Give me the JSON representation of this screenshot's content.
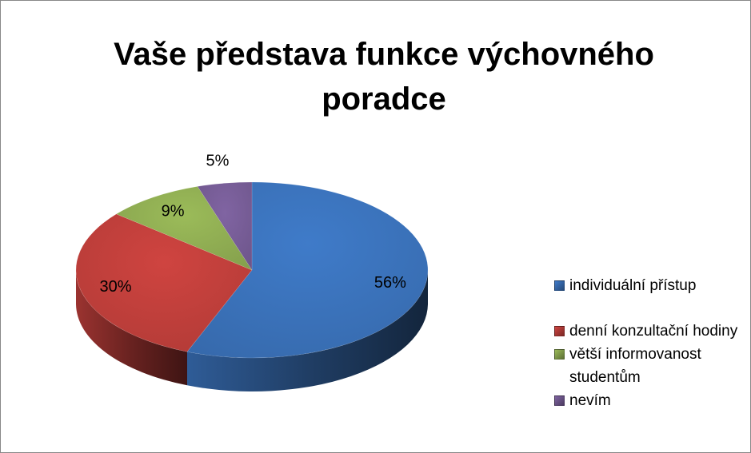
{
  "chart_data": {
    "type": "pie",
    "title": "Vaše představa funkce výchovného poradce",
    "categories": [
      "individuální přístup",
      "denní konzultační hodiny",
      "větší informovanost studentům",
      "nevím"
    ],
    "values": [
      56,
      30,
      9,
      5
    ],
    "value_labels": [
      "56%",
      "30%",
      "9%",
      "5%"
    ],
    "colors": [
      "#3f7bc9",
      "#cf4440",
      "#9bbb59",
      "#8064a2"
    ],
    "legend": "right"
  }
}
